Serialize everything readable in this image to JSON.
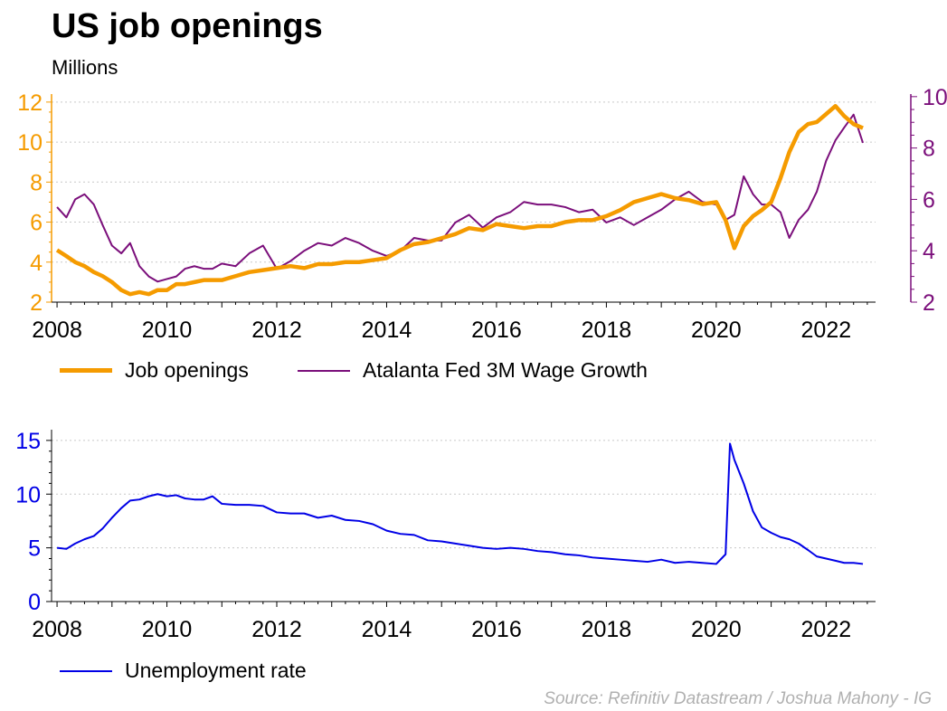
{
  "title": "US job openings",
  "subtitle": "Millions",
  "source": "Source: Refinitiv Datastream / Joshua Mahony - IG",
  "colors": {
    "job_openings": "#f59b00",
    "wage_growth": "#7b0f7b",
    "unemployment": "#0000e6",
    "grid": "#c8c8c8"
  },
  "chart_data": [
    {
      "type": "line",
      "x_ticks": [
        "2008",
        "2010",
        "2012",
        "2014",
        "2016",
        "2018",
        "2020",
        "2022"
      ],
      "xlim": [
        2007.9,
        2022.9
      ],
      "left_axis": {
        "ylim": [
          2,
          12.4
        ],
        "ticks": [
          "2",
          "4",
          "6",
          "8",
          "10",
          "12"
        ]
      },
      "right_axis": {
        "ylim": [
          2,
          10.1
        ],
        "ticks": [
          "2",
          "4",
          "6",
          "8",
          "10"
        ]
      },
      "grid": true,
      "legend_position": "bottom",
      "series": [
        {
          "name": "Job openings",
          "axis": "left",
          "x": [
            2008.0,
            2008.17,
            2008.33,
            2008.5,
            2008.67,
            2008.83,
            2009.0,
            2009.17,
            2009.33,
            2009.5,
            2009.67,
            2009.83,
            2010.0,
            2010.17,
            2010.33,
            2010.5,
            2010.67,
            2010.83,
            2011.0,
            2011.25,
            2011.5,
            2011.75,
            2012.0,
            2012.25,
            2012.5,
            2012.75,
            2013.0,
            2013.25,
            2013.5,
            2013.75,
            2014.0,
            2014.25,
            2014.5,
            2014.75,
            2015.0,
            2015.25,
            2015.5,
            2015.75,
            2016.0,
            2016.25,
            2016.5,
            2016.75,
            2017.0,
            2017.25,
            2017.5,
            2017.75,
            2018.0,
            2018.25,
            2018.5,
            2018.75,
            2019.0,
            2019.25,
            2019.5,
            2019.75,
            2020.0,
            2020.17,
            2020.33,
            2020.5,
            2020.67,
            2020.83,
            2021.0,
            2021.17,
            2021.33,
            2021.5,
            2021.67,
            2021.83,
            2022.0,
            2022.17,
            2022.33,
            2022.5,
            2022.67
          ],
          "y": [
            4.6,
            4.3,
            4.0,
            3.8,
            3.5,
            3.3,
            3.0,
            2.6,
            2.4,
            2.5,
            2.4,
            2.6,
            2.6,
            2.9,
            2.9,
            3.0,
            3.1,
            3.1,
            3.1,
            3.3,
            3.5,
            3.6,
            3.7,
            3.8,
            3.7,
            3.9,
            3.9,
            4.0,
            4.0,
            4.1,
            4.2,
            4.6,
            4.9,
            5.0,
            5.2,
            5.4,
            5.7,
            5.6,
            5.9,
            5.8,
            5.7,
            5.8,
            5.8,
            6.0,
            6.1,
            6.1,
            6.3,
            6.6,
            7.0,
            7.2,
            7.4,
            7.2,
            7.1,
            6.9,
            7.0,
            6.1,
            4.7,
            5.8,
            6.3,
            6.6,
            7.0,
            8.2,
            9.5,
            10.5,
            10.9,
            11.0,
            11.4,
            11.8,
            11.3,
            10.9,
            10.7
          ]
        },
        {
          "name": "Atalanta Fed 3M Wage Growth",
          "axis": "right",
          "x": [
            2008.0,
            2008.17,
            2008.33,
            2008.5,
            2008.67,
            2008.83,
            2009.0,
            2009.17,
            2009.33,
            2009.5,
            2009.67,
            2009.83,
            2010.0,
            2010.17,
            2010.33,
            2010.5,
            2010.67,
            2010.83,
            2011.0,
            2011.25,
            2011.5,
            2011.75,
            2012.0,
            2012.25,
            2012.5,
            2012.75,
            2013.0,
            2013.25,
            2013.5,
            2013.75,
            2014.0,
            2014.25,
            2014.5,
            2014.75,
            2015.0,
            2015.25,
            2015.5,
            2015.75,
            2016.0,
            2016.25,
            2016.5,
            2016.75,
            2017.0,
            2017.25,
            2017.5,
            2017.75,
            2018.0,
            2018.25,
            2018.5,
            2018.75,
            2019.0,
            2019.25,
            2019.5,
            2019.75,
            2020.0,
            2020.17,
            2020.33,
            2020.5,
            2020.67,
            2020.83,
            2021.0,
            2021.17,
            2021.33,
            2021.5,
            2021.67,
            2021.83,
            2022.0,
            2022.17,
            2022.33,
            2022.5,
            2022.67
          ],
          "y": [
            5.7,
            5.3,
            6.0,
            6.2,
            5.8,
            5.0,
            4.2,
            3.9,
            4.3,
            3.4,
            3.0,
            2.8,
            2.9,
            3.0,
            3.3,
            3.4,
            3.3,
            3.3,
            3.5,
            3.4,
            3.9,
            4.2,
            3.3,
            3.6,
            4.0,
            4.3,
            4.2,
            4.5,
            4.3,
            4.0,
            3.8,
            4.0,
            4.5,
            4.4,
            4.4,
            5.1,
            5.4,
            4.9,
            5.3,
            5.5,
            5.9,
            5.8,
            5.8,
            5.7,
            5.5,
            5.6,
            5.1,
            5.3,
            5.0,
            5.3,
            5.6,
            6.0,
            6.3,
            5.9,
            5.8,
            5.2,
            5.4,
            6.9,
            6.2,
            5.8,
            5.8,
            5.5,
            4.5,
            5.2,
            5.6,
            6.3,
            7.5,
            8.3,
            8.8,
            9.3,
            8.2
          ]
        }
      ]
    },
    {
      "type": "line",
      "x_ticks": [
        "2008",
        "2010",
        "2012",
        "2014",
        "2016",
        "2018",
        "2020",
        "2022"
      ],
      "xlim": [
        2007.9,
        2022.9
      ],
      "ylim": [
        0,
        16
      ],
      "y_ticks": [
        "0",
        "5",
        "10",
        "15"
      ],
      "grid": true,
      "legend_position": "bottom",
      "series": [
        {
          "name": "Unemployment rate",
          "x": [
            2008.0,
            2008.17,
            2008.33,
            2008.5,
            2008.67,
            2008.83,
            2009.0,
            2009.17,
            2009.33,
            2009.5,
            2009.67,
            2009.83,
            2010.0,
            2010.17,
            2010.33,
            2010.5,
            2010.67,
            2010.83,
            2011.0,
            2011.25,
            2011.5,
            2011.75,
            2012.0,
            2012.25,
            2012.5,
            2012.75,
            2013.0,
            2013.25,
            2013.5,
            2013.75,
            2014.0,
            2014.25,
            2014.5,
            2014.75,
            2015.0,
            2015.25,
            2015.5,
            2015.75,
            2016.0,
            2016.25,
            2016.5,
            2016.75,
            2017.0,
            2017.25,
            2017.5,
            2017.75,
            2018.0,
            2018.25,
            2018.5,
            2018.75,
            2019.0,
            2019.25,
            2019.5,
            2019.75,
            2020.0,
            2020.17,
            2020.25,
            2020.33,
            2020.5,
            2020.67,
            2020.83,
            2021.0,
            2021.17,
            2021.33,
            2021.5,
            2021.67,
            2021.83,
            2022.0,
            2022.17,
            2022.33,
            2022.5,
            2022.67
          ],
          "y": [
            5.0,
            4.9,
            5.4,
            5.8,
            6.1,
            6.8,
            7.8,
            8.7,
            9.4,
            9.5,
            9.8,
            10.0,
            9.8,
            9.9,
            9.6,
            9.5,
            9.5,
            9.8,
            9.1,
            9.0,
            9.0,
            8.9,
            8.3,
            8.2,
            8.2,
            7.8,
            8.0,
            7.6,
            7.5,
            7.2,
            6.6,
            6.3,
            6.2,
            5.7,
            5.6,
            5.4,
            5.2,
            5.0,
            4.9,
            5.0,
            4.9,
            4.7,
            4.6,
            4.4,
            4.3,
            4.1,
            4.0,
            3.9,
            3.8,
            3.7,
            3.9,
            3.6,
            3.7,
            3.6,
            3.5,
            4.4,
            14.7,
            13.2,
            11.0,
            8.4,
            6.9,
            6.4,
            6.0,
            5.8,
            5.4,
            4.8,
            4.2,
            4.0,
            3.8,
            3.6,
            3.6,
            3.5
          ]
        }
      ]
    }
  ]
}
